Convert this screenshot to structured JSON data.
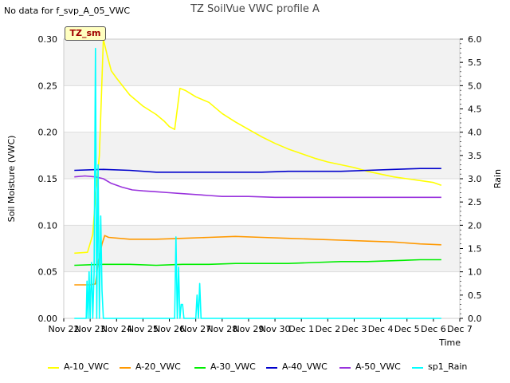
{
  "note": "No data for f_svp_A_05_VWC",
  "badge": "TZ_sm",
  "chart_data": {
    "type": "line",
    "title": "TZ SoilVue VWC profile A",
    "xlabel": "Time",
    "ylabel": "Soil Moisture (VWC)",
    "y2label": "Rain",
    "x_ticks": [
      "Nov 22",
      "Nov 23",
      "Nov 24",
      "Nov 25",
      "Nov 26",
      "Nov 27",
      "Nov 28",
      "Nov 29",
      "Nov 30",
      "Dec 1",
      "Dec 2",
      "Dec 3",
      "Dec 4",
      "Dec 5",
      "Dec 6",
      "Dec 7"
    ],
    "xlim": [
      0,
      15
    ],
    "ylim": [
      0,
      0.3
    ],
    "y_ticks": [
      "0.00",
      "0.05",
      "0.10",
      "0.15",
      "0.20",
      "0.25",
      "0.30"
    ],
    "y2lim": [
      0,
      6.0
    ],
    "y2_ticks": [
      "0.0",
      "0.5",
      "1.0",
      "1.5",
      "2.0",
      "2.5",
      "3.0",
      "3.5",
      "4.0",
      "4.5",
      "5.0",
      "5.5",
      "6.0"
    ],
    "grid": "horizontal bands",
    "legend_position": "bottom",
    "series": [
      {
        "name": "A-10_VWC",
        "color": "#ffff00",
        "axis": "left",
        "x": [
          0.4,
          0.9,
          1.1,
          1.2,
          1.35,
          1.5,
          1.65,
          1.8,
          2.0,
          2.5,
          3.0,
          3.5,
          3.8,
          4.0,
          4.2,
          4.4,
          4.6,
          5.0,
          5.5,
          6.0,
          6.5,
          7.0,
          7.5,
          8.0,
          8.5,
          9.0,
          9.5,
          10.0,
          10.5,
          11.0,
          11.5,
          12.0,
          12.5,
          13.0,
          13.5,
          14.0,
          14.3
        ],
        "y": [
          0.07,
          0.071,
          0.09,
          0.13,
          0.175,
          0.3,
          0.282,
          0.266,
          0.258,
          0.24,
          0.228,
          0.219,
          0.212,
          0.206,
          0.203,
          0.247,
          0.245,
          0.238,
          0.232,
          0.22,
          0.211,
          0.203,
          0.195,
          0.188,
          0.182,
          0.177,
          0.172,
          0.168,
          0.165,
          0.162,
          0.158,
          0.155,
          0.152,
          0.15,
          0.148,
          0.146,
          0.143
        ]
      },
      {
        "name": "A-20_VWC",
        "color": "#ff9900",
        "axis": "left",
        "x": [
          0.4,
          1.0,
          1.2,
          1.3,
          1.45,
          1.55,
          1.7,
          2.5,
          3.5,
          4.5,
          5.5,
          6.5,
          7.5,
          8.5,
          9.5,
          10.5,
          11.5,
          12.5,
          13.5,
          14.3
        ],
        "y": [
          0.036,
          0.036,
          0.037,
          0.06,
          0.08,
          0.089,
          0.087,
          0.085,
          0.085,
          0.086,
          0.087,
          0.088,
          0.087,
          0.086,
          0.085,
          0.084,
          0.083,
          0.082,
          0.08,
          0.079
        ]
      },
      {
        "name": "A-30_VWC",
        "color": "#00ee00",
        "axis": "left",
        "x": [
          0.4,
          1.5,
          2.5,
          3.5,
          4.5,
          5.5,
          6.5,
          7.5,
          8.5,
          9.5,
          10.5,
          11.5,
          12.5,
          13.5,
          14.3
        ],
        "y": [
          0.057,
          0.058,
          0.058,
          0.057,
          0.058,
          0.058,
          0.059,
          0.059,
          0.059,
          0.06,
          0.061,
          0.061,
          0.062,
          0.063,
          0.063
        ]
      },
      {
        "name": "A-40_VWC",
        "color": "#0000cc",
        "axis": "left",
        "x": [
          0.4,
          1.5,
          2.5,
          3.5,
          4.5,
          5.5,
          6.5,
          7.5,
          8.5,
          9.5,
          10.5,
          11.5,
          12.5,
          13.5,
          14.3
        ],
        "y": [
          0.159,
          0.16,
          0.159,
          0.157,
          0.157,
          0.157,
          0.157,
          0.157,
          0.158,
          0.158,
          0.158,
          0.159,
          0.16,
          0.161,
          0.161
        ]
      },
      {
        "name": "A-50_VWC",
        "color": "#9933dd",
        "axis": "left",
        "x": [
          0.4,
          0.8,
          1.2,
          1.5,
          1.8,
          2.2,
          2.6,
          3.0,
          3.5,
          4.0,
          4.5,
          5.0,
          5.5,
          6.0,
          7.0,
          8.0,
          9.0,
          10.0,
          11.0,
          12.0,
          13.0,
          14.3
        ],
        "y": [
          0.152,
          0.153,
          0.152,
          0.15,
          0.145,
          0.141,
          0.138,
          0.137,
          0.136,
          0.135,
          0.134,
          0.133,
          0.132,
          0.131,
          0.131,
          0.13,
          0.13,
          0.13,
          0.13,
          0.13,
          0.13,
          0.13
        ]
      },
      {
        "name": "sp1_Rain",
        "color": "#00ffff",
        "axis": "right",
        "x": [
          0.4,
          0.85,
          0.88,
          0.92,
          0.96,
          1.0,
          1.05,
          1.1,
          1.15,
          1.2,
          1.25,
          1.3,
          1.35,
          1.4,
          1.45,
          1.5,
          1.55,
          4.0,
          4.2,
          4.25,
          4.3,
          4.35,
          4.4,
          4.45,
          4.5,
          4.55,
          4.6,
          5.0,
          5.05,
          5.1,
          5.15,
          5.2,
          5.25,
          14.3
        ],
        "y": [
          0,
          0,
          0.8,
          0,
          1.0,
          0,
          1.2,
          0,
          1.0,
          5.8,
          0,
          3.3,
          0,
          2.2,
          0.6,
          0,
          0,
          0,
          0,
          1.75,
          0,
          1.1,
          0,
          0.3,
          0.3,
          0,
          0,
          0,
          0.5,
          0,
          0.75,
          0,
          0,
          0
        ]
      }
    ]
  }
}
